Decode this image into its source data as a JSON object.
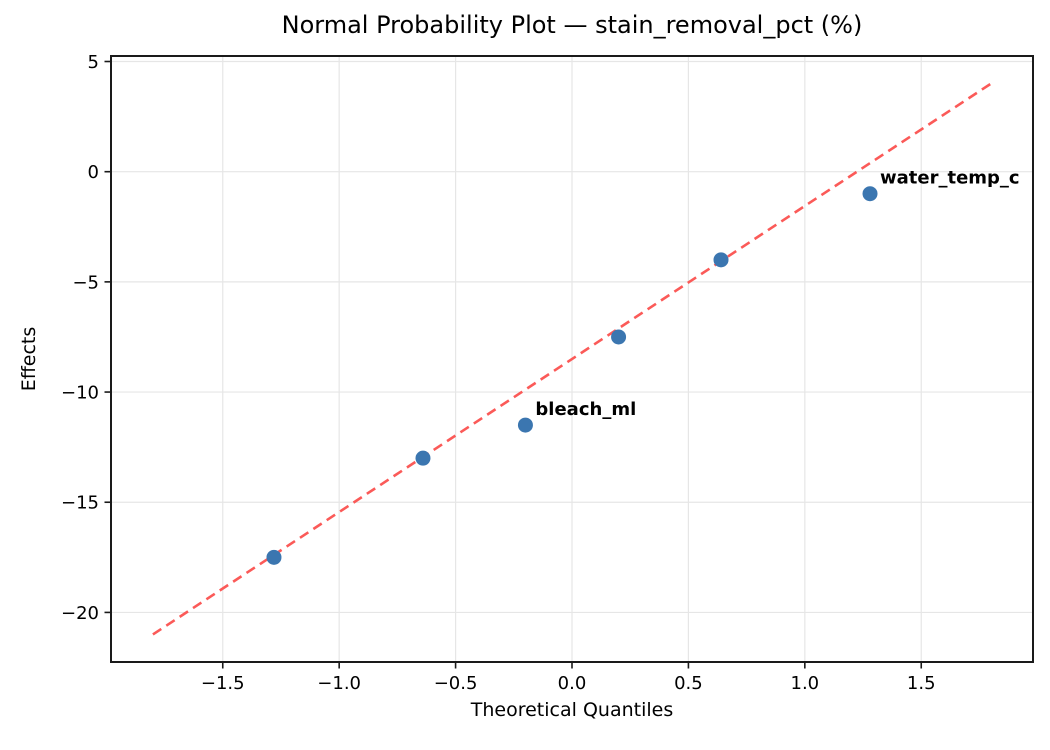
{
  "chart": {
    "title": "Normal Probability Plot — stain_removal_pct (%)",
    "xlabel": "Theoretical Quantiles",
    "ylabel": "Effects"
  },
  "chart_data": {
    "type": "scatter",
    "title": "Normal Probability Plot — stain_removal_pct (%)",
    "xlabel": "Theoretical Quantiles",
    "ylabel": "Effects",
    "xlim": [
      -1.98,
      1.98
    ],
    "ylim": [
      -22.25,
      5.25
    ],
    "grid": true,
    "xticks": [
      -1.5,
      -1.0,
      -0.5,
      0.0,
      0.5,
      1.0,
      1.5
    ],
    "xtick_labels": [
      "−1.5",
      "−1.0",
      "−0.5",
      "0.0",
      "0.5",
      "1.0",
      "1.5"
    ],
    "yticks": [
      5,
      0,
      -5,
      -10,
      -15,
      -20
    ],
    "ytick_labels": [
      "5",
      "0",
      "−5",
      "−10",
      "−15",
      "−20"
    ],
    "points": [
      {
        "x": -1.28,
        "y": -17.5,
        "label": ""
      },
      {
        "x": -0.64,
        "y": -13.0,
        "label": ""
      },
      {
        "x": -0.2,
        "y": -11.5,
        "label": "bleach_ml"
      },
      {
        "x": 0.2,
        "y": -7.5,
        "label": ""
      },
      {
        "x": 0.64,
        "y": -4.0,
        "label": ""
      },
      {
        "x": 1.28,
        "y": -1.0,
        "label": "water_temp_c"
      }
    ],
    "fit_line": {
      "x1": -1.8,
      "y1": -21.0,
      "x2": 1.8,
      "y2": 4.0,
      "style": "dashed"
    },
    "colors": {
      "point": "#3b76b0",
      "fit_line": "#fb5a58",
      "annotation": "#e60000",
      "grid": "#e6e6e6",
      "spine": "#1a1a1a",
      "tick": "#1a1a1a"
    },
    "legend": null
  }
}
